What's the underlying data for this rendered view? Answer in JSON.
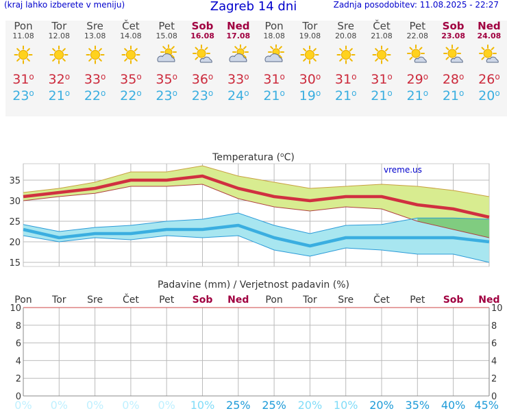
{
  "header": {
    "menu_hint": "(kraj lahko izberete v meniju)",
    "title": "Zagreb 14 dni",
    "updated": "Zadnja posodobitev: 11.08.2025 - 22:27"
  },
  "degree_symbol": "o",
  "days": [
    {
      "name": "Pon",
      "date": "11.08",
      "weekend": false,
      "icon": "sun-icon",
      "max": "31",
      "min": "23"
    },
    {
      "name": "Tor",
      "date": "12.08",
      "weekend": false,
      "icon": "sun-icon",
      "max": "32",
      "min": "21"
    },
    {
      "name": "Sre",
      "date": "13.08",
      "weekend": false,
      "icon": "sun-icon",
      "max": "33",
      "min": "22"
    },
    {
      "name": "Čet",
      "date": "14.08",
      "weekend": false,
      "icon": "sun-icon",
      "max": "35",
      "min": "22"
    },
    {
      "name": "Pet",
      "date": "15.08",
      "weekend": false,
      "icon": "cloud-sun-icon",
      "max": "35",
      "min": "23"
    },
    {
      "name": "Sob",
      "date": "16.08",
      "weekend": true,
      "icon": "sun-small-cloud-icon",
      "max": "36",
      "min": "23"
    },
    {
      "name": "Ned",
      "date": "17.08",
      "weekend": true,
      "icon": "cloud-sun-icon",
      "max": "33",
      "min": "24"
    },
    {
      "name": "Pon",
      "date": "18.08",
      "weekend": false,
      "icon": "cloud-sun-icon",
      "max": "31",
      "min": "21"
    },
    {
      "name": "Tor",
      "date": "19.08",
      "weekend": false,
      "icon": "sun-icon",
      "max": "30",
      "min": "19"
    },
    {
      "name": "Sre",
      "date": "20.08",
      "weekend": false,
      "icon": "sun-icon",
      "max": "31",
      "min": "21"
    },
    {
      "name": "Čet",
      "date": "21.08",
      "weekend": false,
      "icon": "sun-icon",
      "max": "31",
      "min": "21"
    },
    {
      "name": "Pet",
      "date": "22.08",
      "weekend": false,
      "icon": "sun-small-cloud-icon",
      "max": "29",
      "min": "21"
    },
    {
      "name": "Sob",
      "date": "23.08",
      "weekend": true,
      "icon": "sun-small-cloud-icon",
      "max": "28",
      "min": "21"
    },
    {
      "name": "Ned",
      "date": "24.08",
      "weekend": true,
      "icon": "sun-small-cloud-icon",
      "max": "26",
      "min": "20"
    }
  ],
  "colors": {
    "max_line": "#d03040",
    "max_band": "#d8ec90",
    "min_line": "#3aaee0",
    "min_band": "#a8e6f0",
    "overlap": "#80cc80",
    "grid": "#bbbbbb",
    "weekend": "#a00040",
    "precip_axis": "#cc4444"
  },
  "chart_data": [
    {
      "type": "line",
      "title": "Temperatura (",
      "title_sup": "o",
      "title_unit": "C)",
      "watermark": "vreme.us",
      "categories": [
        "Pon",
        "Tor",
        "Sre",
        "Čet",
        "Pet",
        "Sob",
        "Ned",
        "Pon",
        "Tor",
        "Sre",
        "Čet",
        "Pet",
        "Sob",
        "Ned"
      ],
      "ylim": [
        14,
        39
      ],
      "yticks": [
        15,
        20,
        25,
        30,
        35
      ],
      "grid": true,
      "series": [
        {
          "key": "max",
          "values": [
            31,
            32,
            33,
            35,
            35,
            36,
            33,
            31,
            30,
            31,
            31,
            29,
            28,
            26
          ],
          "band_low": [
            30,
            31,
            31.8,
            33.5,
            33.5,
            34,
            30.5,
            28.5,
            27.5,
            28.5,
            28,
            25,
            23,
            21
          ],
          "band_high": [
            32,
            33,
            34.5,
            37,
            37,
            38.5,
            36,
            34.5,
            33,
            33.5,
            34,
            33.5,
            32.5,
            31
          ]
        },
        {
          "key": "min",
          "values": [
            23,
            21,
            22,
            22,
            23,
            23,
            24,
            21,
            19,
            21,
            21,
            21,
            21,
            20
          ],
          "band_low": [
            21.5,
            20,
            21,
            20.5,
            21.5,
            21,
            21.5,
            18,
            16.5,
            18.5,
            18,
            17,
            17,
            15
          ],
          "band_high": [
            24.2,
            22.5,
            23.5,
            24,
            25,
            25.5,
            27,
            24,
            22,
            24,
            24.2,
            25.8,
            25.8,
            25.5
          ]
        }
      ]
    },
    {
      "type": "bar",
      "title": "Padavine (mm) / Verjetnost padavin (%)",
      "categories": [
        "Pon",
        "Tor",
        "Sre",
        "Čet",
        "Pet",
        "Sob",
        "Ned",
        "Pon",
        "Tor",
        "Sre",
        "Čet",
        "Pet",
        "Sob",
        "Ned"
      ],
      "ylim": [
        0,
        10
      ],
      "yticks": [
        0,
        2,
        4,
        6,
        8,
        10
      ],
      "values": [
        0,
        0,
        0,
        0,
        0,
        0,
        0,
        0,
        0,
        0,
        0,
        0,
        0,
        0
      ],
      "probability": [
        "0%",
        "0%",
        "0%",
        "0%",
        "0%",
        "10%",
        "25%",
        "25%",
        "20%",
        "10%",
        "20%",
        "35%",
        "40%",
        "45%"
      ],
      "probability_colors": [
        "#bff0ff",
        "#bff0ff",
        "#bff0ff",
        "#bff0ff",
        "#bff0ff",
        "#80dcf8",
        "#1e9bd8",
        "#1e9bd8",
        "#80dcf8",
        "#80dcf8",
        "#1e9bd8",
        "#1e9bd8",
        "#1e9bd8",
        "#1e9bd8"
      ]
    }
  ]
}
